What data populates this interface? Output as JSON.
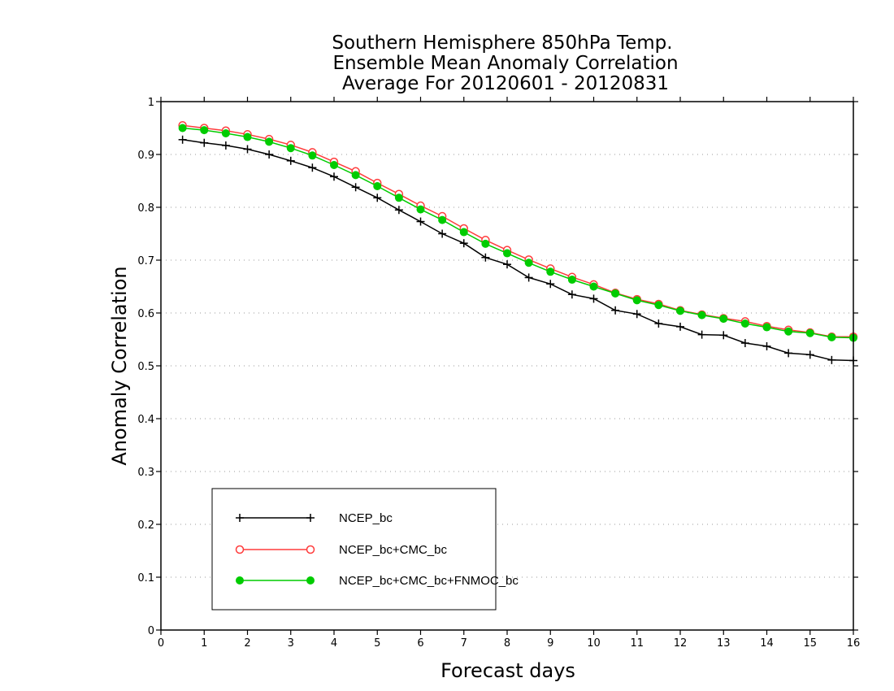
{
  "chart_data": {
    "type": "line",
    "title": [
      "Southern Hemisphere 850hPa Temp.",
      "Ensemble Mean Anomaly Correlation",
      "Average For 20120601 - 20120831"
    ],
    "xlabel": "Forecast days",
    "ylabel": "Anomaly Correlation",
    "xlim": [
      0,
      16
    ],
    "ylim": [
      0,
      1
    ],
    "xticks": [
      "0",
      "1",
      "2",
      "3",
      "4",
      "5",
      "6",
      "7",
      "8",
      "9",
      "10",
      "11",
      "12",
      "13",
      "14",
      "15",
      "16"
    ],
    "yticks": [
      "0",
      "0.1",
      "0.2",
      "0.3",
      "0.4",
      "0.5",
      "0.6",
      "0.7",
      "0.8",
      "0.9",
      "1"
    ],
    "grid": true,
    "legend_position": "bottom-left",
    "x": [
      0.5,
      1,
      1.5,
      2,
      2.5,
      3,
      3.5,
      4,
      4.5,
      5,
      5.5,
      6,
      6.5,
      7,
      7.5,
      8,
      8.5,
      9,
      9.5,
      10,
      10.5,
      11,
      11.5,
      12,
      12.5,
      13,
      13.5,
      14,
      14.5,
      15,
      15.5,
      16
    ],
    "series": [
      {
        "name": "NCEP_bc",
        "color": "#000000",
        "marker": "plus",
        "values": [
          0.928,
          0.922,
          0.917,
          0.91,
          0.9,
          0.888,
          0.875,
          0.858,
          0.838,
          0.818,
          0.795,
          0.773,
          0.75,
          0.732,
          0.705,
          0.692,
          0.667,
          0.655,
          0.635,
          0.627,
          0.605,
          0.598,
          0.58,
          0.574,
          0.559,
          0.558,
          0.543,
          0.537,
          0.524,
          0.521,
          0.511,
          0.51
        ]
      },
      {
        "name": "NCEP_bc+CMC_bc",
        "color": "#ff3b3b",
        "marker": "open-circle",
        "values": [
          0.955,
          0.95,
          0.945,
          0.938,
          0.929,
          0.918,
          0.904,
          0.886,
          0.868,
          0.846,
          0.825,
          0.803,
          0.783,
          0.76,
          0.738,
          0.719,
          0.701,
          0.684,
          0.668,
          0.654,
          0.638,
          0.626,
          0.617,
          0.605,
          0.597,
          0.59,
          0.584,
          0.575,
          0.568,
          0.563,
          0.555,
          0.555
        ]
      },
      {
        "name": "NCEP_bc+CMC_bc+FNMOC_bc",
        "color": "#00cc00",
        "marker": "filled-circle",
        "values": [
          0.95,
          0.946,
          0.94,
          0.933,
          0.924,
          0.912,
          0.898,
          0.88,
          0.861,
          0.84,
          0.818,
          0.796,
          0.776,
          0.753,
          0.731,
          0.713,
          0.695,
          0.678,
          0.663,
          0.65,
          0.637,
          0.624,
          0.615,
          0.604,
          0.596,
          0.589,
          0.58,
          0.573,
          0.565,
          0.562,
          0.554,
          0.553
        ]
      }
    ]
  }
}
